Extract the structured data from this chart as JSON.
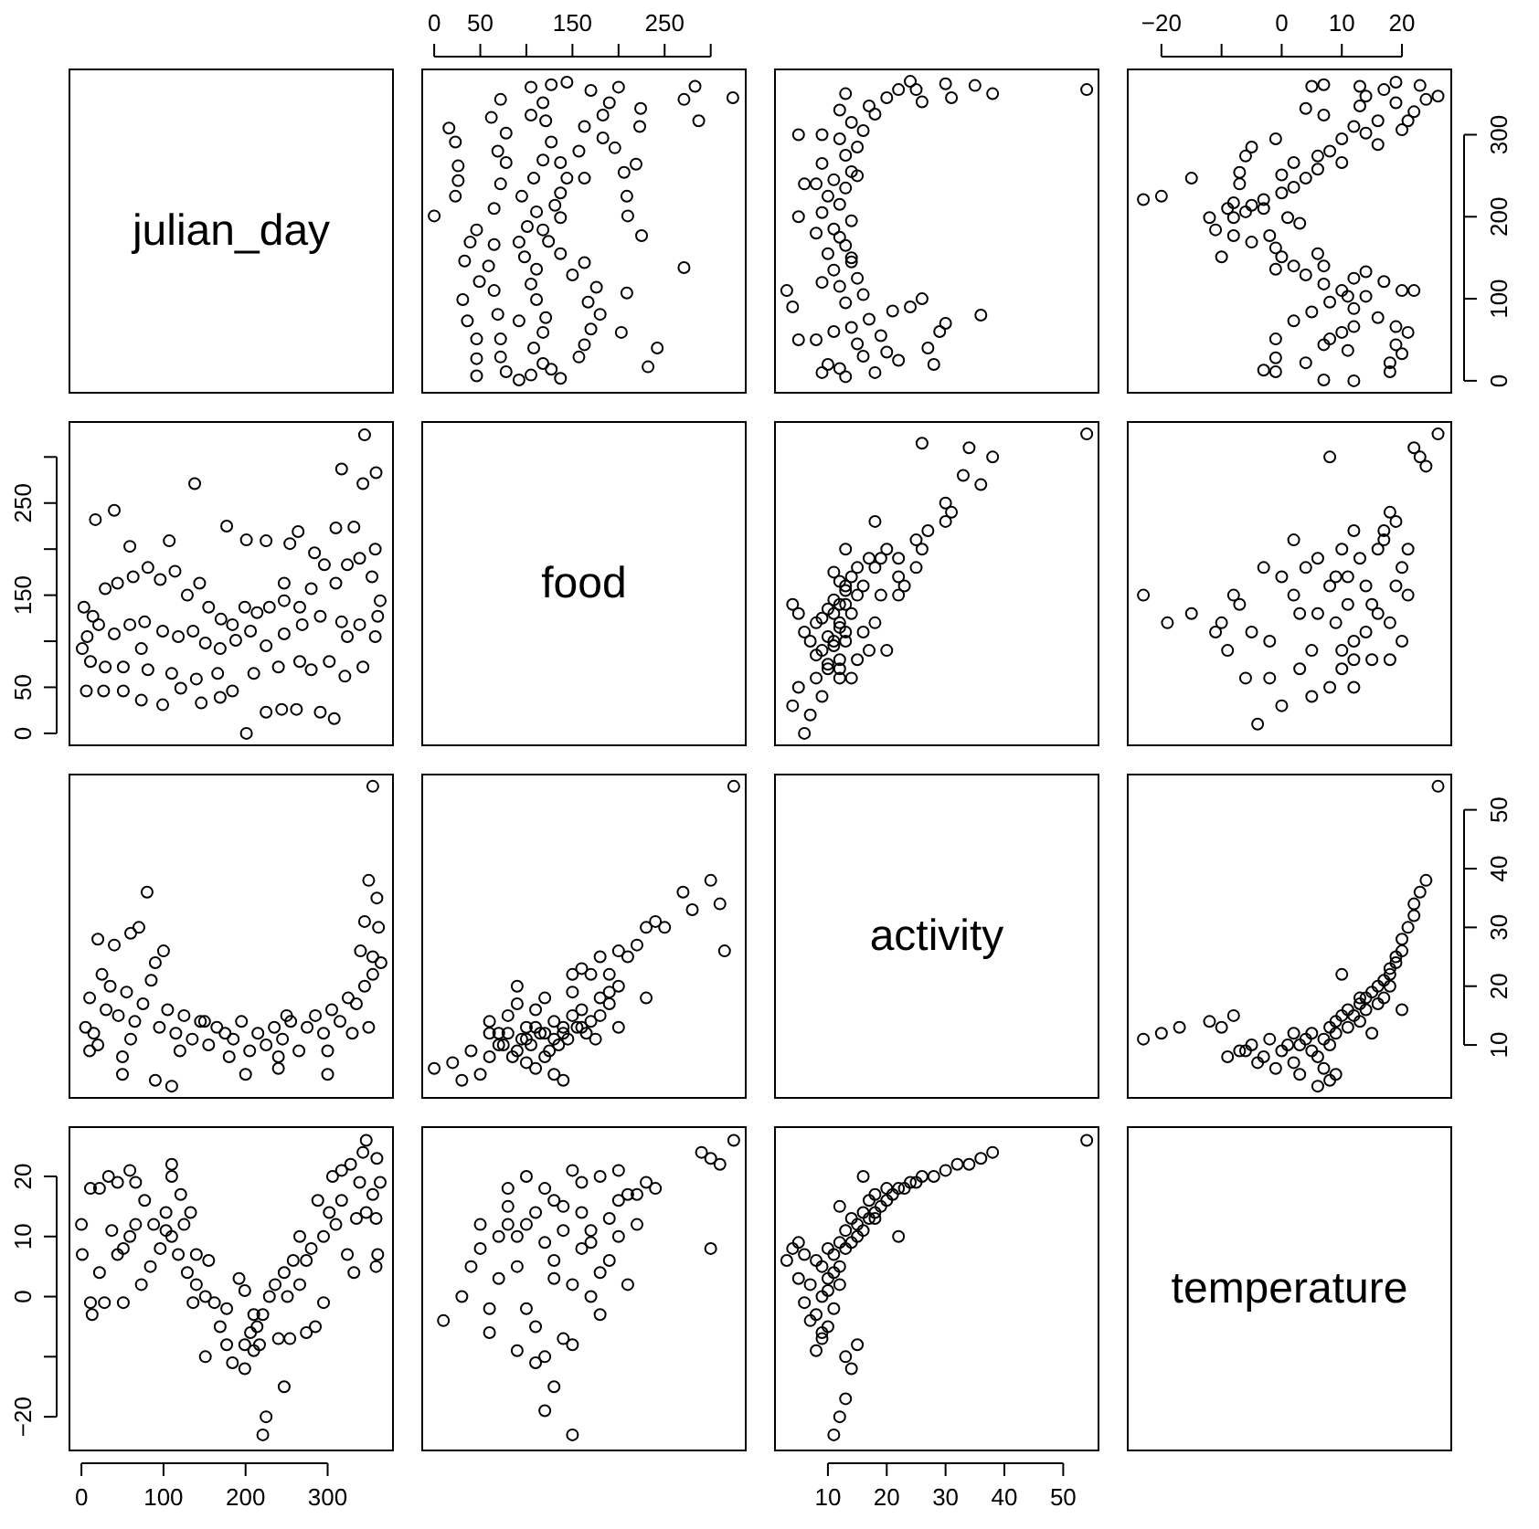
{
  "chart_data": [
    {
      "type": "other",
      "title": "julian_day"
    },
    {
      "type": "scatter",
      "marker": "circle",
      "tick_labels": "x",
      "xlim": [
        -13,
        338
      ],
      "ylim": [
        -14.6,
        379.6
      ],
      "xticks": [
        0,
        50,
        {
          "value": 100,
          "label": null
        },
        150,
        {
          "value": 200,
          "label": null
        },
        250,
        {
          "value": 300,
          "label": null
        }
      ],
      "x": [
        324,
        287,
        271,
        283,
        271,
        242,
        232,
        225,
        210,
        219,
        206,
        200,
        223,
        224,
        0,
        23,
        26,
        26,
        23,
        16,
        46,
        46,
        46,
        31,
        36,
        49,
        33,
        39,
        62,
        72,
        105,
        92,
        78,
        72,
        72,
        92,
        69,
        65,
        59,
        65,
        46,
        65,
        72,
        78,
        69,
        78,
        105,
        137,
        127,
        157,
        163,
        170,
        180,
        167,
        176,
        150,
        163,
        137,
        124,
        118,
        137,
        131,
        137,
        144,
        137,
        157,
        183,
        163,
        183,
        190,
        170,
        144,
        105,
        118,
        108,
        118,
        121,
        111,
        105,
        111,
        98,
        92,
        101,
        111,
        95,
        108,
        118,
        127,
        121,
        118,
        127,
        203,
        209,
        209,
        196,
        163
      ],
      "series": [
        {
          "color": "#000000",
          "values": [
            345,
            317,
            343,
            359,
            138,
            40,
            17,
            177,
            201,
            264,
            254,
            358,
            310,
            332,
            201,
            225,
            244,
            262,
            291,
            308,
            6,
            27,
            51,
            99,
            73,
            121,
            146,
            169,
            321,
            343,
            358,
            1,
            11,
            29,
            51,
            73,
            81,
            110,
            140,
            166,
            184,
            210,
            240,
            266,
            280,
            302,
            324,
            3,
            14,
            29,
            44,
            63,
            81,
            96,
            114,
            129,
            144,
            155,
            170,
            184,
            199,
            214,
            229,
            247,
            266,
            280,
            296,
            310,
            324,
            339,
            354,
            364,
            7,
            21,
            40,
            59,
            77,
            99,
            118,
            136,
            151,
            169,
            188,
            206,
            225,
            247,
            269,
            291,
            317,
            339,
            361,
            59,
            107,
            225,
            284,
            247
          ]
        }
      ]
    },
    {
      "type": "scatter",
      "marker": "circle",
      "tick_labels": false,
      "xlim": [
        1,
        56
      ],
      "ylim": [
        -14.6,
        379.6
      ],
      "x": [
        54,
        38,
        35,
        31,
        30,
        26,
        25,
        24,
        36,
        30,
        29,
        27,
        28,
        26,
        24,
        5,
        4,
        3,
        5,
        6,
        5,
        13,
        18,
        12,
        22,
        16,
        20,
        15,
        19,
        14,
        17,
        21,
        13,
        16,
        12,
        15,
        11,
        14,
        10,
        13,
        12,
        11,
        14,
        9,
        12,
        10,
        13,
        11,
        14,
        9,
        13,
        15,
        12,
        16,
        14,
        18,
        17,
        20,
        22,
        10,
        11,
        9,
        8,
        8,
        9,
        12,
        9,
        8,
        14,
        15,
        13
      ],
      "series": [
        {
          "color": "#000000",
          "values": [
            355,
            350,
            360,
            345,
            362,
            340,
            355,
            365,
            80,
            70,
            60,
            40,
            20,
            100,
            90,
            50,
            90,
            110,
            200,
            240,
            300,
            5,
            10,
            15,
            25,
            30,
            35,
            45,
            55,
            65,
            75,
            85,
            95,
            105,
            115,
            125,
            135,
            145,
            155,
            165,
            175,
            185,
            195,
            205,
            215,
            225,
            235,
            245,
            255,
            265,
            275,
            285,
            295,
            305,
            315,
            325,
            335,
            345,
            355,
            20,
            60,
            120,
            180,
            240,
            300,
            330,
            10,
            50,
            150,
            250,
            350
          ]
        }
      ]
    },
    {
      "type": "scatter",
      "marker": "circle",
      "xlim": [
        -25.6,
        28.2
      ],
      "ylim": [
        -14.6,
        379.6
      ],
      "xticks": [
        {
          "value": -20,
          "label": "−20"
        },
        {
          "value": -10,
          "label": null
        },
        0,
        10,
        20
      ],
      "yticks": [
        0,
        100,
        200,
        300
      ],
      "x": [
        26,
        23,
        24,
        22,
        21,
        20,
        19,
        17,
        19,
        14,
        13,
        13,
        12,
        10,
        16,
        8,
        10,
        6,
        6,
        4,
        2,
        0,
        -3,
        -5,
        -6,
        -8,
        -9,
        -12,
        -11,
        -8,
        -5,
        -2,
        -1,
        0,
        2,
        -1,
        4,
        7,
        10,
        14,
        8,
        12,
        16,
        19,
        21,
        19,
        20,
        18,
        18,
        12,
        7,
        -1,
        -3,
        -1,
        -1,
        4,
        11,
        8,
        2,
        5,
        22,
        20,
        17,
        14,
        -10,
        -23,
        -20,
        -15,
        -8,
        -7,
        -7,
        -6,
        -5,
        -1,
        6,
        7,
        12,
        11,
        12,
        10,
        7,
        7,
        4,
        5,
        7,
        16,
        14,
        2,
        0,
        1,
        3,
        -3
      ],
      "series": [
        {
          "color": "#000000",
          "values": [
            347,
            360,
            343,
            328,
            317,
            306,
            339,
            355,
            364,
            347,
            359,
            335,
            310,
            295,
            288,
            280,
            266,
            274,
            258,
            247,
            236,
            229,
            221,
            214,
            206,
            199,
            210,
            199,
            184,
            177,
            169,
            177,
            162,
            151,
            140,
            136,
            129,
            118,
            110,
            103,
            96,
            88,
            77,
            66,
            59,
            44,
            33,
            22,
            11,
            0,
            1,
            11,
            13,
            28,
            51,
            22,
            37,
            51,
            73,
            84,
            110,
            110,
            121,
            133,
            151,
            221,
            225,
            247,
            217,
            240,
            254,
            274,
            285,
            295,
            155,
            140,
            125,
            103,
            66,
            59,
            44,
            324,
            332,
            359,
            361,
            317,
            302,
            266,
            251,
            199,
            192,
            210
          ]
        }
      ]
    },
    {
      "type": "scatter",
      "marker": "circle",
      "tick_labels": "y",
      "xlim": [
        -14.6,
        379.6
      ],
      "ylim": [
        -13,
        338
      ],
      "yticks": [
        0,
        50,
        {
          "value": 100,
          "label": null
        },
        150,
        {
          "value": 200,
          "label": null
        },
        250,
        {
          "value": 300,
          "label": null
        }
      ],
      "x": [
        345,
        317,
        343,
        359,
        138,
        40,
        17,
        177,
        201,
        264,
        254,
        358,
        310,
        332,
        201,
        225,
        244,
        262,
        291,
        308,
        6,
        27,
        51,
        99,
        73,
        121,
        146,
        169,
        321,
        343,
        358,
        1,
        11,
        29,
        51,
        73,
        81,
        110,
        140,
        166,
        184,
        210,
        240,
        266,
        280,
        302,
        324,
        3,
        14,
        29,
        44,
        63,
        81,
        96,
        114,
        129,
        144,
        155,
        170,
        184,
        199,
        214,
        229,
        247,
        266,
        280,
        296,
        310,
        324,
        339,
        354,
        364,
        7,
        21,
        40,
        59,
        77,
        99,
        118,
        136,
        151,
        169,
        188,
        206,
        225,
        247,
        269,
        291,
        317,
        339,
        361,
        59,
        107,
        225,
        284,
        247
      ],
      "series": [
        {
          "color": "#000000",
          "values": [
            324,
            287,
            271,
            283,
            271,
            242,
            232,
            225,
            210,
            219,
            206,
            200,
            223,
            224,
            0,
            23,
            26,
            26,
            23,
            16,
            46,
            46,
            46,
            31,
            36,
            49,
            33,
            39,
            62,
            72,
            105,
            92,
            78,
            72,
            72,
            92,
            69,
            65,
            59,
            65,
            46,
            65,
            72,
            78,
            69,
            78,
            105,
            137,
            127,
            157,
            163,
            170,
            180,
            167,
            176,
            150,
            163,
            137,
            124,
            118,
            137,
            131,
            137,
            144,
            137,
            157,
            183,
            163,
            183,
            190,
            170,
            144,
            105,
            118,
            108,
            118,
            121,
            111,
            105,
            111,
            98,
            92,
            101,
            111,
            95,
            108,
            118,
            127,
            121,
            118,
            127,
            203,
            209,
            209,
            196,
            163
          ]
        }
      ]
    },
    {
      "type": "other",
      "title": "food"
    },
    {
      "type": "scatter",
      "marker": "circle",
      "tick_labels": false,
      "xlim": [
        1,
        56
      ],
      "ylim": [
        -13,
        338
      ],
      "x": [
        54,
        38,
        34,
        26,
        36,
        33,
        30,
        31,
        30,
        27,
        25,
        26,
        22,
        25,
        23,
        22,
        6,
        7,
        4,
        5,
        9,
        8,
        10,
        12,
        9,
        11,
        13,
        12,
        14,
        13,
        15,
        16,
        14,
        18,
        17,
        20,
        14,
        12,
        15,
        17,
        13,
        16,
        18,
        11,
        12,
        19,
        13,
        22,
        15,
        19,
        10,
        8,
        11,
        10,
        12,
        9,
        10,
        11,
        13,
        12,
        11,
        7,
        6,
        8,
        5,
        4,
        20,
        13,
        18,
        12
      ],
      "series": [
        {
          "color": "#000000",
          "values": [
            325,
            300,
            310,
            315,
            270,
            280,
            250,
            240,
            230,
            220,
            210,
            200,
            190,
            180,
            160,
            150,
            0,
            20,
            30,
            50,
            40,
            60,
            70,
            80,
            90,
            100,
            110,
            120,
            130,
            140,
            150,
            160,
            170,
            180,
            190,
            200,
            60,
            70,
            80,
            90,
            100,
            110,
            120,
            130,
            140,
            150,
            160,
            170,
            180,
            190,
            75,
            85,
            95,
            105,
            115,
            125,
            135,
            145,
            155,
            165,
            175,
            100,
            110,
            120,
            130,
            140,
            90,
            200,
            230,
            60
          ]
        }
      ]
    },
    {
      "type": "scatter",
      "marker": "circle",
      "tick_labels": false,
      "xlim": [
        -25.6,
        28.2
      ],
      "ylim": [
        -13,
        338
      ],
      "x": [
        26,
        23,
        22,
        24,
        8,
        -23,
        -19,
        -15,
        -4,
        0,
        8,
        -2,
        10,
        15,
        5,
        12,
        -5,
        18,
        3,
        11,
        -8,
        14,
        9,
        20,
        6,
        16,
        2,
        12,
        19,
        18,
        5,
        -6,
        12,
        20,
        -10,
        15,
        8,
        -3,
        10,
        17,
        12,
        3,
        -9,
        14,
        6,
        21,
        0,
        13,
        17,
        18,
        -2,
        9,
        -7,
        19,
        4,
        21,
        10,
        -11,
        16,
        2,
        11
      ],
      "series": [
        {
          "color": "#000000",
          "values": [
            325,
            300,
            310,
            290,
            300,
            150,
            120,
            130,
            10,
            30,
            50,
            60,
            70,
            80,
            90,
            100,
            110,
            120,
            130,
            140,
            150,
            160,
            170,
            180,
            190,
            200,
            210,
            220,
            230,
            240,
            40,
            60,
            80,
            100,
            120,
            140,
            160,
            180,
            200,
            220,
            50,
            70,
            90,
            110,
            130,
            150,
            170,
            190,
            210,
            80,
            100,
            120,
            140,
            160,
            180,
            200,
            90,
            110,
            130,
            150,
            170
          ]
        }
      ]
    },
    {
      "type": "scatter",
      "marker": "circle",
      "tick_labels": false,
      "xlim": [
        -14.6,
        379.6
      ],
      "ylim": [
        1,
        56
      ],
      "x": [
        355,
        350,
        360,
        345,
        362,
        340,
        355,
        365,
        80,
        70,
        60,
        40,
        20,
        100,
        90,
        50,
        90,
        110,
        200,
        240,
        300,
        5,
        10,
        15,
        25,
        30,
        35,
        45,
        55,
        65,
        75,
        85,
        95,
        105,
        115,
        125,
        135,
        145,
        155,
        165,
        175,
        185,
        195,
        205,
        215,
        225,
        235,
        245,
        255,
        265,
        275,
        285,
        295,
        305,
        315,
        325,
        335,
        345,
        355,
        20,
        60,
        120,
        180,
        240,
        300,
        330,
        10,
        50,
        150,
        250,
        350
      ],
      "series": [
        {
          "color": "#000000",
          "values": [
            54,
            38,
            35,
            31,
            30,
            26,
            25,
            24,
            36,
            30,
            29,
            27,
            28,
            26,
            24,
            5,
            4,
            3,
            5,
            6,
            5,
            13,
            18,
            12,
            22,
            16,
            20,
            15,
            19,
            14,
            17,
            21,
            13,
            16,
            12,
            15,
            11,
            14,
            10,
            13,
            12,
            11,
            14,
            9,
            12,
            10,
            13,
            11,
            14,
            9,
            13,
            15,
            12,
            16,
            14,
            18,
            17,
            20,
            22,
            10,
            11,
            9,
            8,
            8,
            9,
            12,
            9,
            8,
            14,
            15,
            13
          ]
        }
      ]
    },
    {
      "type": "scatter",
      "marker": "circle",
      "tick_labels": false,
      "xlim": [
        -13,
        338
      ],
      "ylim": [
        1,
        56
      ],
      "x": [
        325,
        300,
        310,
        315,
        270,
        280,
        250,
        240,
        230,
        220,
        210,
        200,
        190,
        180,
        160,
        150,
        0,
        20,
        30,
        50,
        40,
        60,
        70,
        80,
        90,
        100,
        110,
        120,
        130,
        140,
        150,
        160,
        170,
        180,
        190,
        200,
        60,
        70,
        80,
        90,
        100,
        110,
        120,
        130,
        140,
        150,
        160,
        170,
        180,
        190,
        75,
        85,
        95,
        105,
        115,
        125,
        135,
        145,
        155,
        165,
        175,
        100,
        110,
        120,
        130,
        140,
        90,
        200,
        230,
        60
      ],
      "series": [
        {
          "color": "#000000",
          "values": [
            54,
            38,
            34,
            26,
            36,
            33,
            30,
            31,
            30,
            27,
            25,
            26,
            22,
            25,
            23,
            22,
            6,
            7,
            4,
            5,
            9,
            8,
            10,
            12,
            9,
            11,
            13,
            12,
            14,
            13,
            15,
            16,
            14,
            18,
            17,
            20,
            14,
            12,
            15,
            17,
            13,
            16,
            18,
            11,
            12,
            19,
            13,
            22,
            15,
            19,
            10,
            8,
            11,
            10,
            12,
            9,
            10,
            11,
            13,
            12,
            11,
            7,
            6,
            8,
            5,
            4,
            20,
            13,
            18,
            12
          ]
        }
      ]
    },
    {
      "type": "other",
      "title": "activity"
    },
    {
      "type": "scatter",
      "marker": "circle",
      "tick_labels": "y",
      "xlim": [
        -25.6,
        28.2
      ],
      "ylim": [
        1,
        56
      ],
      "yticks": [
        10,
        20,
        30,
        40,
        50
      ],
      "x": [
        26,
        24,
        23,
        22,
        22,
        21,
        20,
        20,
        19,
        19,
        18,
        18,
        17,
        16,
        18,
        15,
        14,
        17,
        13,
        16,
        11,
        14,
        12,
        10,
        9,
        13,
        8,
        11,
        5,
        9,
        2,
        7,
        -2,
        4,
        3,
        -5,
        8,
        0,
        -7,
        5,
        -3,
        6,
        -9,
        2,
        -4,
        7,
        -1,
        9,
        3,
        8,
        6,
        -23,
        -20,
        -17,
        -12,
        -8,
        -10,
        1,
        -6,
        15,
        20,
        13,
        10
      ],
      "series": [
        {
          "color": "#000000",
          "values": [
            54,
            38,
            36,
            34,
            32,
            30,
            28,
            26,
            25,
            24,
            23,
            22,
            21,
            20,
            20,
            19,
            18,
            18,
            17,
            17,
            16,
            16,
            15,
            15,
            14,
            14,
            13,
            13,
            12,
            12,
            12,
            11,
            11,
            11,
            10,
            10,
            10,
            9,
            9,
            9,
            8,
            8,
            8,
            7,
            7,
            6,
            6,
            5,
            5,
            4,
            3,
            11,
            12,
            13,
            14,
            15,
            13,
            10,
            9,
            12,
            16,
            18,
            22
          ]
        }
      ]
    },
    {
      "type": "scatter",
      "marker": "circle",
      "xlim": [
        -14.6,
        379.6
      ],
      "ylim": [
        -25.6,
        28.2
      ],
      "xticks": [
        0,
        100,
        200,
        300
      ],
      "yticks": [
        {
          "value": -20,
          "label": "−20"
        },
        {
          "value": -10,
          "label": null
        },
        0,
        10,
        20
      ],
      "x": [
        347,
        360,
        343,
        328,
        317,
        306,
        339,
        355,
        364,
        347,
        359,
        335,
        310,
        295,
        288,
        280,
        266,
        274,
        258,
        247,
        236,
        229,
        221,
        214,
        206,
        199,
        210,
        199,
        184,
        177,
        169,
        177,
        162,
        151,
        140,
        136,
        129,
        118,
        110,
        103,
        96,
        88,
        77,
        66,
        59,
        44,
        33,
        22,
        11,
        0,
        1,
        11,
        13,
        28,
        51,
        22,
        37,
        51,
        73,
        84,
        110,
        110,
        121,
        133,
        151,
        221,
        225,
        247,
        217,
        240,
        254,
        274,
        285,
        295,
        155,
        140,
        125,
        103,
        66,
        59,
        44,
        324,
        332,
        359,
        361,
        317,
        302,
        266,
        251,
        199,
        192,
        210
      ],
      "series": [
        {
          "color": "#000000",
          "values": [
            26,
            23,
            24,
            22,
            21,
            20,
            19,
            17,
            19,
            14,
            13,
            13,
            12,
            10,
            16,
            8,
            10,
            6,
            6,
            4,
            2,
            0,
            -3,
            -5,
            -6,
            -8,
            -9,
            -12,
            -11,
            -8,
            -5,
            -2,
            -1,
            0,
            2,
            -1,
            4,
            7,
            10,
            14,
            8,
            12,
            16,
            19,
            21,
            19,
            20,
            18,
            18,
            12,
            7,
            -1,
            -3,
            -1,
            -1,
            4,
            11,
            8,
            2,
            5,
            22,
            20,
            17,
            14,
            -10,
            -23,
            -20,
            -15,
            -8,
            -7,
            -7,
            -6,
            -5,
            -1,
            6,
            7,
            12,
            11,
            12,
            10,
            7,
            7,
            4,
            5,
            7,
            16,
            14,
            2,
            0,
            1,
            3,
            -3
          ]
        }
      ]
    },
    {
      "type": "scatter",
      "marker": "circle",
      "tick_labels": false,
      "xlim": [
        -13,
        338
      ],
      "ylim": [
        -25.6,
        28.2
      ],
      "x": [
        325,
        300,
        310,
        290,
        300,
        150,
        120,
        130,
        10,
        30,
        50,
        60,
        70,
        80,
        90,
        100,
        110,
        120,
        130,
        140,
        150,
        160,
        170,
        180,
        190,
        200,
        210,
        220,
        230,
        240,
        40,
        60,
        80,
        100,
        120,
        140,
        160,
        180,
        200,
        220,
        50,
        70,
        90,
        110,
        130,
        150,
        170,
        190,
        210,
        80,
        100,
        120,
        140,
        160,
        180,
        200,
        90,
        110,
        130,
        150,
        170
      ],
      "series": [
        {
          "color": "#000000",
          "values": [
            26,
            23,
            22,
            24,
            8,
            -23,
            -19,
            -15,
            -4,
            0,
            8,
            -2,
            10,
            15,
            5,
            12,
            -5,
            18,
            3,
            11,
            -8,
            14,
            9,
            20,
            6,
            16,
            2,
            12,
            19,
            18,
            5,
            -6,
            12,
            20,
            -10,
            15,
            8,
            -3,
            10,
            17,
            12,
            3,
            -9,
            14,
            6,
            21,
            0,
            13,
            17,
            18,
            -2,
            9,
            -7,
            19,
            4,
            21,
            10,
            -11,
            16,
            2,
            11
          ]
        }
      ]
    },
    {
      "type": "scatter",
      "marker": "circle",
      "tick_labels": "x",
      "xlim": [
        1,
        56
      ],
      "ylim": [
        -25.6,
        28.2
      ],
      "xticks": [
        10,
        20,
        30,
        40,
        50
      ],
      "x": [
        54,
        38,
        36,
        34,
        32,
        30,
        28,
        26,
        25,
        24,
        23,
        22,
        21,
        20,
        20,
        19,
        18,
        18,
        17,
        17,
        16,
        16,
        15,
        15,
        14,
        14,
        13,
        13,
        12,
        12,
        12,
        11,
        11,
        11,
        10,
        10,
        10,
        9,
        9,
        9,
        8,
        8,
        8,
        7,
        7,
        6,
        6,
        5,
        5,
        4,
        3,
        11,
        12,
        13,
        14,
        15,
        13,
        10,
        9,
        12,
        16,
        18,
        22
      ],
      "series": [
        {
          "color": "#000000",
          "values": [
            26,
            24,
            23,
            22,
            22,
            21,
            20,
            20,
            19,
            19,
            18,
            18,
            17,
            16,
            18,
            15,
            14,
            17,
            13,
            16,
            11,
            14,
            12,
            10,
            9,
            13,
            8,
            11,
            5,
            9,
            2,
            7,
            -2,
            4,
            3,
            -5,
            8,
            0,
            -7,
            5,
            -3,
            6,
            -9,
            2,
            -4,
            7,
            -1,
            9,
            3,
            8,
            6,
            -23,
            -20,
            -17,
            -12,
            -8,
            -10,
            1,
            -6,
            15,
            20,
            13,
            10
          ]
        }
      ]
    },
    {
      "type": "other",
      "title": "temperature"
    }
  ]
}
